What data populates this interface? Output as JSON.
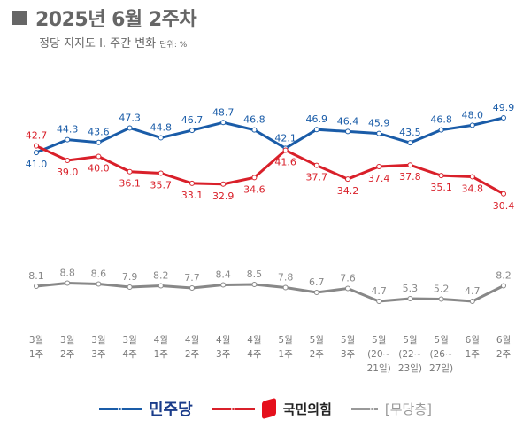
{
  "header": {
    "title": "2025년 6월 2주차",
    "subtitle": "정당 지지도 Ⅰ. 주간 변화",
    "unit": "단위: %"
  },
  "chart_data": {
    "type": "line",
    "title": "정당 지지도 Ⅰ. 주간 변화",
    "categories": [
      [
        "3월",
        "1주"
      ],
      [
        "3월",
        "2주"
      ],
      [
        "3월",
        "3주"
      ],
      [
        "3월",
        "4주"
      ],
      [
        "4월",
        "1주"
      ],
      [
        "4월",
        "2주"
      ],
      [
        "4월",
        "3주"
      ],
      [
        "4월",
        "4주"
      ],
      [
        "5월",
        "1주"
      ],
      [
        "5월",
        "2주"
      ],
      [
        "5월",
        "3주"
      ],
      [
        "5월",
        "(20~",
        "21일)"
      ],
      [
        "5월",
        "(22~",
        "23일)"
      ],
      [
        "5월",
        "(26~",
        "27일)"
      ],
      [
        "6월",
        "1주"
      ],
      [
        "6월",
        "2주"
      ]
    ],
    "series": [
      {
        "name": "민주당",
        "color": "#1a5ca8",
        "values": [
          41.0,
          44.3,
          43.6,
          47.3,
          44.8,
          46.7,
          48.7,
          46.8,
          42.1,
          46.9,
          46.4,
          45.9,
          43.5,
          46.8,
          48.0,
          49.9
        ]
      },
      {
        "name": "국민의힘",
        "color": "#d9202a",
        "values": [
          42.7,
          39.0,
          40.0,
          36.1,
          35.7,
          33.1,
          32.9,
          34.6,
          41.6,
          37.7,
          34.2,
          37.4,
          37.8,
          35.1,
          34.8,
          30.4
        ]
      },
      {
        "name": "[무당층]",
        "color": "#888888",
        "values": [
          8.1,
          8.8,
          8.6,
          7.9,
          8.2,
          7.7,
          8.4,
          8.5,
          7.8,
          6.7,
          7.6,
          4.7,
          5.3,
          5.2,
          4.7,
          8.2
        ]
      }
    ],
    "ylabel": "%",
    "grid": false,
    "legend": "bottom"
  }
}
